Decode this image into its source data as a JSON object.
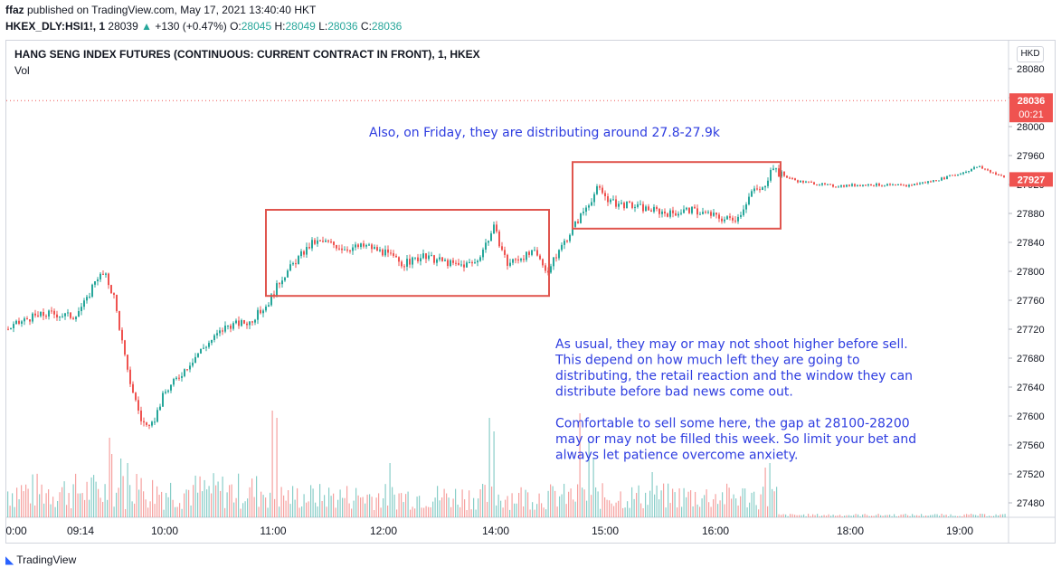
{
  "header": {
    "publisher": "ffaz",
    "published_text": " published on TradingView.com, May 17, 2021 13:40:40 HKT",
    "symbol_line": "HKEX_DLY:HSI1!, 1",
    "last_price": "28039",
    "change_arrow": "▲",
    "change": "+130 (+0.47%)",
    "o_label": "O:",
    "o_value": "28045",
    "h_label": "H:",
    "h_value": "28049",
    "l_label": "L:",
    "l_value": "28036",
    "c_label": "C:",
    "c_value": "28036"
  },
  "pane": {
    "title": "HANG SENG INDEX FUTURES (CONTINUOUS: CURRENT CONTRACT IN FRONT), 1, HKEX",
    "volume_label": "Vol",
    "currency": "HKD"
  },
  "price_tags": {
    "last": "28036",
    "countdown": "00:21",
    "current": "27927"
  },
  "annotations": {
    "friday_note": "Also, on Friday, they are distributing around 27.8-27.9k",
    "note_lines": [
      "As usual, they may or may not shoot higher before sell.",
      "This depend on how much left they are going to",
      "distributing, the retail reaction and the window they can",
      "distribute before bad news come out.",
      "",
      "Comfortable to sell some here, the gap at 28100-28200",
      "may or may not be filled this week. So limit your bet and",
      "always let patience overcome anxiety."
    ]
  },
  "footer": {
    "brand": "TradingView"
  },
  "colors": {
    "up": "#26a69a",
    "down": "#ef5350",
    "box": "#e0554e",
    "note": "#2e3de0",
    "last_tag": "#ef5350",
    "current_tag": "#ef5350"
  },
  "chart_data": {
    "type": "candlestick",
    "title": "HANG SENG INDEX FUTURES (CONTINUOUS: CURRENT CONTRACT IN FRONT), 1, HKEX",
    "y_ticks": [
      28080,
      28040,
      28000,
      27960,
      27920,
      27880,
      27840,
      27800,
      27760,
      27720,
      27680,
      27640,
      27600,
      27560,
      27520,
      27480
    ],
    "ylim": [
      27455,
      28095
    ],
    "x_tick_labels": [
      "0:00",
      "09:14",
      "10:00",
      "11:00",
      "12:00",
      "14:00",
      "15:00",
      "16:00",
      "18:00",
      "19:00"
    ],
    "price_path": [
      [
        0,
        27715
      ],
      [
        30,
        27735
      ],
      [
        55,
        27742
      ],
      [
        80,
        27738
      ],
      [
        95,
        27760
      ],
      [
        105,
        27792
      ],
      [
        115,
        27795
      ],
      [
        125,
        27765
      ],
      [
        140,
        27660
      ],
      [
        155,
        27595
      ],
      [
        165,
        27580
      ],
      [
        180,
        27630
      ],
      [
        200,
        27660
      ],
      [
        220,
        27690
      ],
      [
        250,
        27725
      ],
      [
        275,
        27730
      ],
      [
        295,
        27755
      ],
      [
        310,
        27790
      ],
      [
        330,
        27820
      ],
      [
        345,
        27840
      ],
      [
        360,
        27840
      ],
      [
        380,
        27832
      ],
      [
        405,
        27835
      ],
      [
        425,
        27825
      ],
      [
        445,
        27810
      ],
      [
        465,
        27820
      ],
      [
        485,
        27815
      ],
      [
        505,
        27808
      ],
      [
        525,
        27812
      ],
      [
        545,
        27860
      ],
      [
        560,
        27810
      ],
      [
        575,
        27820
      ],
      [
        590,
        27825
      ],
      [
        605,
        27800
      ],
      [
        620,
        27835
      ],
      [
        640,
        27875
      ],
      [
        660,
        27915
      ],
      [
        675,
        27895
      ],
      [
        700,
        27890
      ],
      [
        720,
        27885
      ],
      [
        740,
        27880
      ],
      [
        760,
        27885
      ],
      [
        780,
        27880
      ],
      [
        800,
        27872
      ],
      [
        815,
        27875
      ],
      [
        830,
        27910
      ],
      [
        845,
        27915
      ],
      [
        852,
        27950
      ],
      [
        860,
        27935
      ],
      [
        880,
        27925
      ],
      [
        920,
        27918
      ],
      [
        960,
        27920
      ],
      [
        1000,
        27918
      ],
      [
        1030,
        27925
      ],
      [
        1060,
        27935
      ],
      [
        1080,
        27945
      ],
      [
        1100,
        27935
      ],
      [
        1112,
        27928
      ]
    ],
    "boxes": [
      {
        "x_start": 294,
        "x_end": 607,
        "y_low": 27766,
        "y_high": 27885
      },
      {
        "x_start": 633,
        "x_end": 863,
        "y_low": 27859,
        "y_high": 27951
      }
    ],
    "last_price": 28036,
    "current_price": 27927,
    "volume": "per-minute bars, mostly small with spikes near 11:00, 14:15, 14:45 and 16:30"
  }
}
